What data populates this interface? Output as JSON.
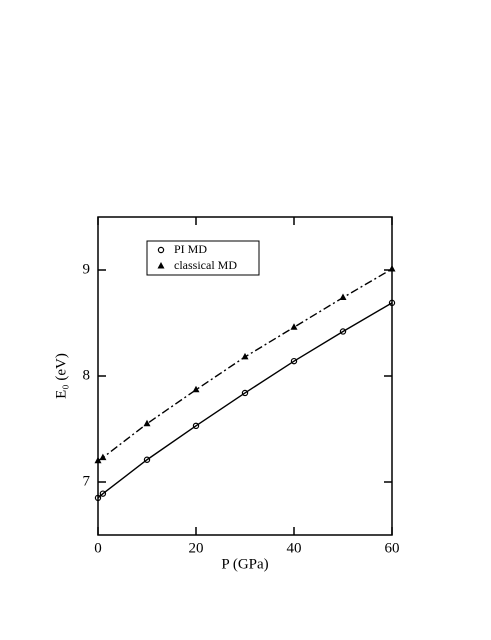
{
  "chart_data": {
    "type": "line",
    "x_label": "P  (GPa)",
    "y_label": "E₀ (eV)",
    "xlim": [
      0,
      60
    ],
    "xticks": [
      0,
      20,
      40,
      60
    ],
    "ylim": [
      6.5,
      9.5
    ],
    "yticks": [
      7,
      8,
      9
    ],
    "legend": "upper left",
    "series": [
      {
        "name": "PI MD",
        "color": "#000000",
        "marker": "circle",
        "line": "solid",
        "x": [
          0,
          1,
          10,
          20,
          30,
          40,
          50,
          60
        ],
        "values": [
          6.85,
          6.89,
          7.21,
          7.53,
          7.84,
          8.14,
          8.42,
          8.69
        ]
      },
      {
        "name": "classical MD",
        "color": "#000000",
        "marker": "triangle",
        "line": "dashdot",
        "x": [
          0,
          1,
          10,
          20,
          30,
          40,
          50,
          60
        ],
        "values": [
          7.2,
          7.23,
          7.55,
          7.87,
          8.18,
          8.46,
          8.74,
          9.01
        ]
      }
    ]
  }
}
